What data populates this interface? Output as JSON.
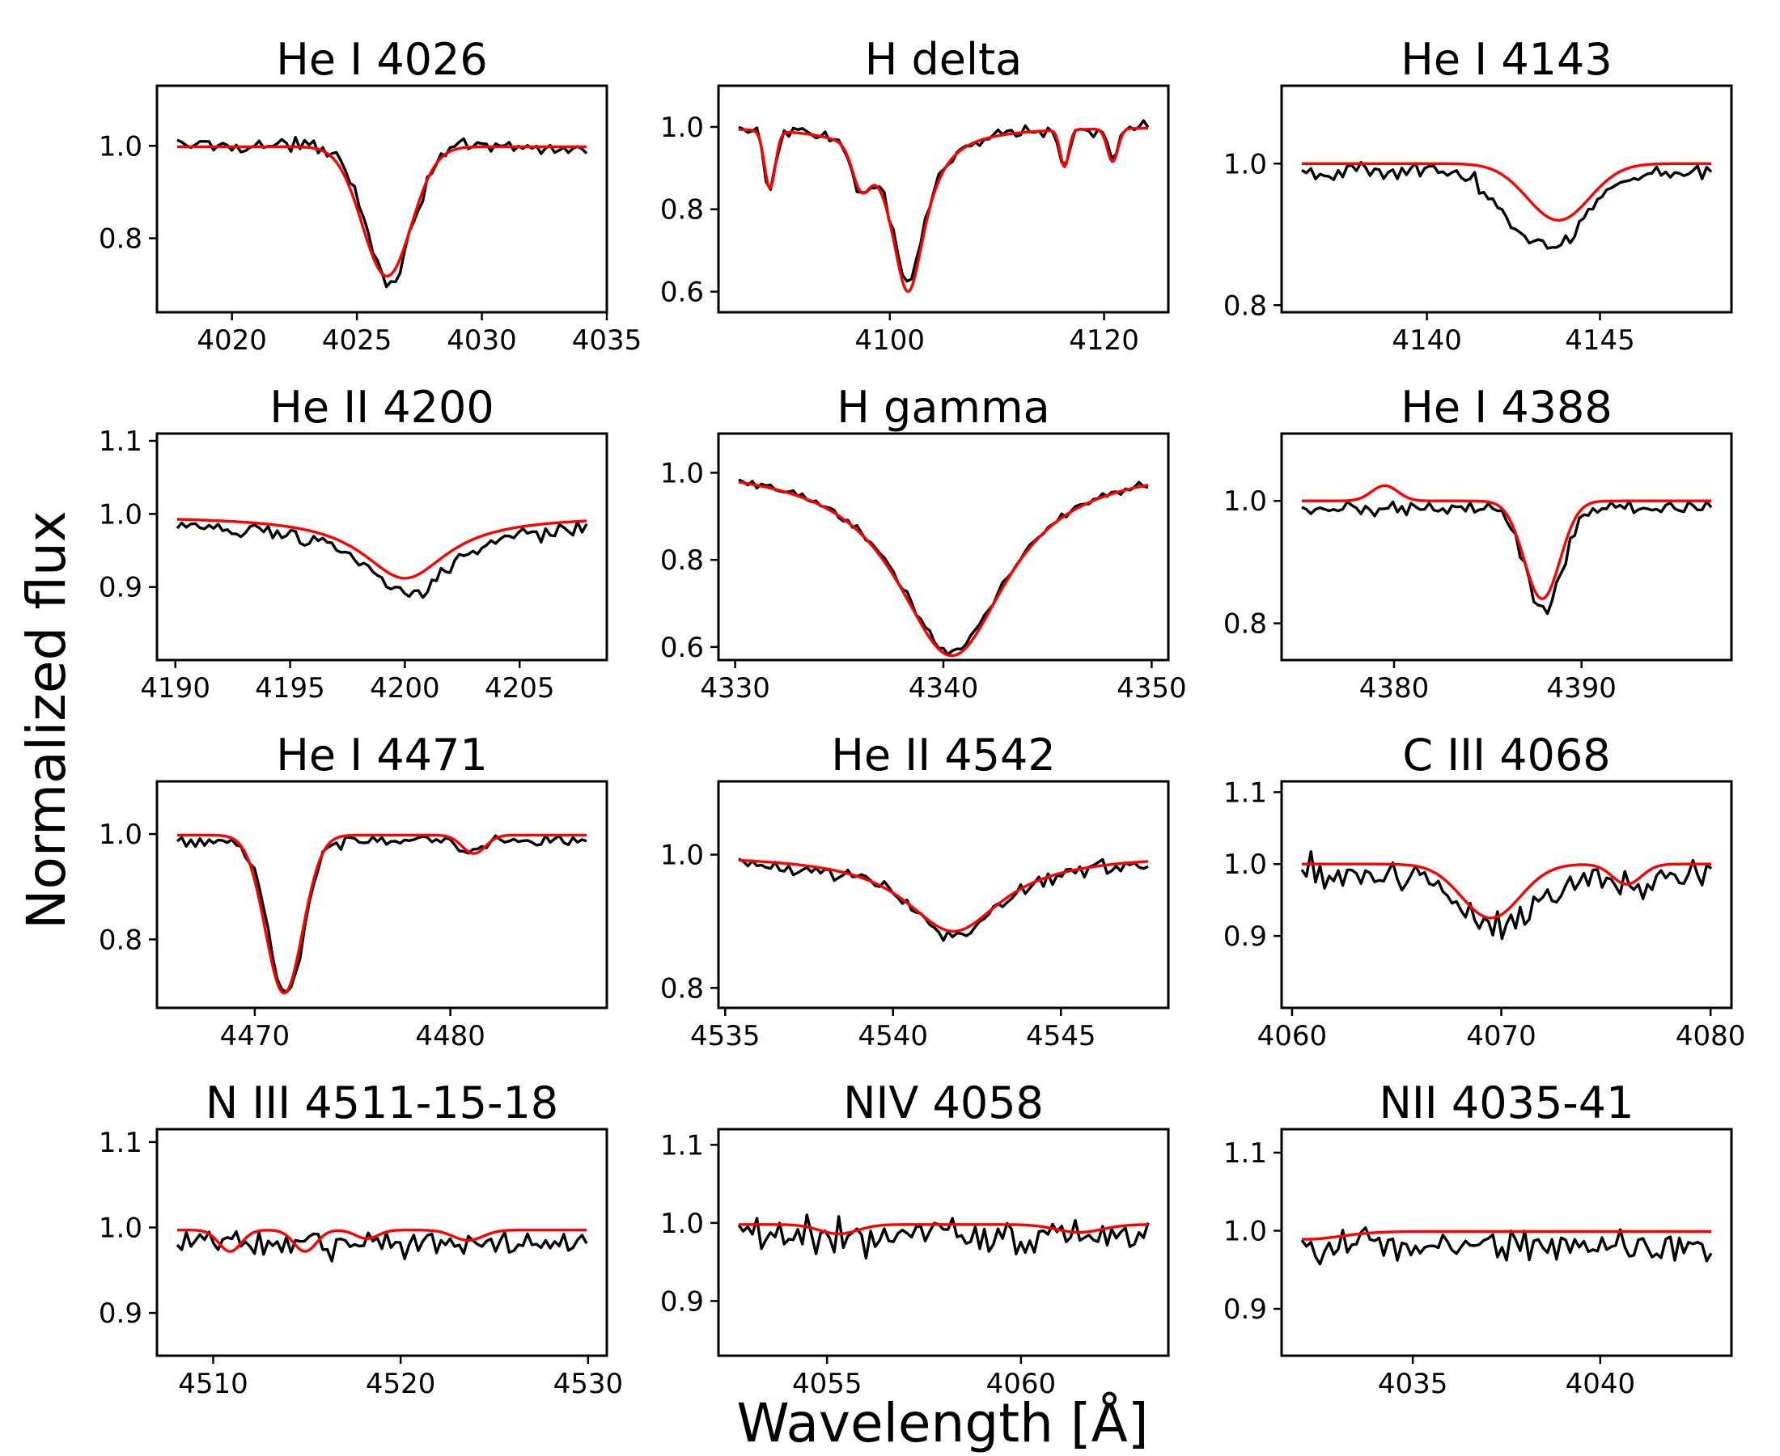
{
  "figure": {
    "ylabel": "Normalized flux",
    "xlabel": "Wavelength [Å]",
    "observed_color": "#000000",
    "model_color": "#ff0000"
  },
  "chart_data": [
    {
      "type": "line",
      "title": "He I 4026",
      "xlim": [
        4017,
        4035
      ],
      "ylim": [
        0.64,
        1.13
      ],
      "xticks": [
        4020,
        4025,
        4030,
        4035
      ],
      "yticks": [
        0.8,
        1.0
      ],
      "ytick_labels": [
        "0.8",
        "1.0"
      ],
      "series": [
        {
          "profile": "gauss",
          "center": 4026.3,
          "depth": 0.29,
          "sigma": 0.9,
          "continuum": 0.998,
          "tilt": -0.01,
          "noise": 0.012
        },
        {
          "profile": "gauss",
          "center": 4026.2,
          "depth": 0.28,
          "sigma": 0.98,
          "continuum": 0.998,
          "tilt": 0.0,
          "noise": 0
        }
      ]
    },
    {
      "type": "line",
      "title": "H delta",
      "xlim": [
        4084,
        4126
      ],
      "ylim": [
        0.55,
        1.1
      ],
      "xticks": [
        4100,
        4120
      ],
      "yticks": [
        0.6,
        0.8,
        1.0
      ],
      "ytick_labels": [
        "0.6",
        "0.8",
        "1.0"
      ],
      "series": [
        {
          "profile": "multi",
          "lines": [
            {
              "c": 4101.7,
              "d": 0.38,
              "s": 2.0,
              "lor": true
            },
            {
              "c": 4088.8,
              "d": 0.14,
              "s": 0.5
            },
            {
              "c": 4097.3,
              "d": 0.1,
              "s": 0.8
            },
            {
              "c": 4116.3,
              "d": 0.09,
              "s": 0.4
            },
            {
              "c": 4120.8,
              "d": 0.06,
              "s": 0.5
            }
          ],
          "continuum": 1.0,
          "noise": 0.012
        },
        {
          "profile": "multi",
          "lines": [
            {
              "c": 4101.7,
              "d": 0.4,
              "s": 2.0,
              "lor": true
            },
            {
              "c": 4088.8,
              "d": 0.14,
              "s": 0.5
            },
            {
              "c": 4097.3,
              "d": 0.09,
              "s": 0.8
            },
            {
              "c": 4116.3,
              "d": 0.09,
              "s": 0.4
            },
            {
              "c": 4120.8,
              "d": 0.08,
              "s": 0.5
            }
          ],
          "continuum": 1.0,
          "noise": 0
        }
      ]
    },
    {
      "type": "line",
      "title": "He I 4143",
      "xlim": [
        4135.8,
        4148.8
      ],
      "ylim": [
        0.79,
        1.11
      ],
      "xticks": [
        4140,
        4145
      ],
      "yticks": [
        0.8,
        1.0
      ],
      "ytick_labels": [
        "0.8",
        "1.0"
      ],
      "series": [
        {
          "profile": "gauss",
          "center": 4143.5,
          "depth": 0.11,
          "sigma": 1.1,
          "continuum": 0.99,
          "tilt": 0.0,
          "noise": 0.01
        },
        {
          "profile": "gauss",
          "center": 4143.8,
          "depth": 0.08,
          "sigma": 0.9,
          "continuum": 1.0,
          "tilt": 0.0,
          "noise": 0
        }
      ]
    },
    {
      "type": "line",
      "title": "He II 4200",
      "xlim": [
        4189.2,
        4208.8
      ],
      "ylim": [
        0.8,
        1.11
      ],
      "xticks": [
        4190,
        4195,
        4200,
        4205
      ],
      "yticks": [
        0.9,
        1.0,
        1.1
      ],
      "ytick_labels": [
        "0.9",
        "1.0",
        "1.1"
      ],
      "series": [
        {
          "profile": "lorentz",
          "center": 4200.2,
          "depth": 0.1,
          "sigma": 2.3,
          "continuum": 0.988,
          "tilt": 0.0,
          "noise": 0.008
        },
        {
          "profile": "lorentz",
          "center": 4200.0,
          "depth": 0.085,
          "sigma": 2.3,
          "continuum": 0.997,
          "tilt": 0.0,
          "noise": 0
        }
      ]
    },
    {
      "type": "line",
      "title": "H gamma",
      "xlim": [
        4329.2,
        4350.8
      ],
      "ylim": [
        0.57,
        1.09
      ],
      "xticks": [
        4330,
        4340,
        4350
      ],
      "yticks": [
        0.6,
        0.8,
        1.0
      ],
      "ytick_labels": [
        "0.6",
        "0.8",
        "1.0"
      ],
      "series": [
        {
          "profile": "lorentz",
          "center": 4340.4,
          "depth": 0.43,
          "sigma": 3.3,
          "continuum": 1.02,
          "tilt": 0.0,
          "noise": 0.008
        },
        {
          "profile": "lorentz",
          "center": 4340.4,
          "depth": 0.44,
          "sigma": 3.3,
          "continuum": 1.02,
          "tilt": 0.0,
          "noise": 0
        }
      ]
    },
    {
      "type": "line",
      "title": "He I 4388",
      "xlim": [
        4374,
        4398
      ],
      "ylim": [
        0.74,
        1.11
      ],
      "xticks": [
        4380,
        4390
      ],
      "yticks": [
        0.8,
        1.0
      ],
      "ytick_labels": [
        "0.8",
        "1.0"
      ],
      "series": [
        {
          "profile": "gauss",
          "center": 4388.0,
          "depth": 0.17,
          "sigma": 0.95,
          "continuum": 0.988,
          "tilt": 0.0,
          "noise": 0.009
        },
        {
          "profile": "multi",
          "lines": [
            {
              "c": 4387.9,
              "d": 0.16,
              "s": 0.95
            },
            {
              "c": 4379.5,
              "d": -0.025,
              "s": 0.7
            }
          ],
          "continuum": 1.0,
          "noise": 0
        }
      ]
    },
    {
      "type": "line",
      "title": "He I 4471",
      "xlim": [
        4465,
        4488
      ],
      "ylim": [
        0.67,
        1.1
      ],
      "xticks": [
        4470,
        4480
      ],
      "yticks": [
        0.8,
        1.0
      ],
      "ytick_labels": [
        "0.8",
        "1.0"
      ],
      "series": [
        {
          "profile": "multi",
          "lines": [
            {
              "c": 4471.6,
              "d": 0.29,
              "s": 0.9
            },
            {
              "c": 4481.2,
              "d": 0.02,
              "s": 0.6
            }
          ],
          "continuum": 0.988,
          "noise": 0.008
        },
        {
          "profile": "multi",
          "lines": [
            {
              "c": 4471.5,
              "d": 0.3,
              "s": 0.95
            },
            {
              "c": 4481.2,
              "d": 0.035,
              "s": 0.6
            }
          ],
          "continuum": 0.998,
          "noise": 0
        }
      ]
    },
    {
      "type": "line",
      "title": "He II 4542",
      "xlim": [
        4534.8,
        4548.2
      ],
      "ylim": [
        0.77,
        1.11
      ],
      "xticks": [
        4535,
        4540,
        4545
      ],
      "yticks": [
        0.8,
        1.0
      ],
      "ytick_labels": [
        "0.8",
        "1.0"
      ],
      "series": [
        {
          "profile": "lorentz",
          "center": 4541.8,
          "depth": 0.12,
          "sigma": 1.6,
          "continuum": 0.995,
          "tilt": 0.0,
          "noise": 0.008
        },
        {
          "profile": "lorentz",
          "center": 4541.8,
          "depth": 0.115,
          "sigma": 1.8,
          "continuum": 1.0,
          "tilt": 0.0,
          "noise": 0
        }
      ]
    },
    {
      "type": "line",
      "title": "C III 4068",
      "xlim": [
        4059.5,
        4081
      ],
      "ylim": [
        0.8,
        1.115
      ],
      "xticks": [
        4060,
        4070,
        4080
      ],
      "yticks": [
        0.9,
        1.0,
        1.1
      ],
      "ytick_labels": [
        "0.9",
        "1.0",
        "1.1"
      ],
      "series": [
        {
          "profile": "multi",
          "lines": [
            {
              "c": 4069.8,
              "d": 0.07,
              "s": 1.6
            },
            {
              "c": 4075.9,
              "d": 0.02,
              "s": 1.0
            }
          ],
          "continuum": 0.985,
          "noise": 0.02
        },
        {
          "profile": "multi",
          "lines": [
            {
              "c": 4069.5,
              "d": 0.075,
              "s": 1.4
            },
            {
              "c": 4076.0,
              "d": 0.028,
              "s": 0.7
            },
            {
              "c": 4072.1,
              "d": 0.0,
              "s": 0.5
            }
          ],
          "continuum": 1.0,
          "noise": 0
        }
      ]
    },
    {
      "type": "line",
      "title": "N III 4511-15-18",
      "xlim": [
        4507,
        4531
      ],
      "ylim": [
        0.85,
        1.115
      ],
      "xticks": [
        4510,
        4520,
        4530
      ],
      "yticks": [
        0.9,
        1.0,
        1.1
      ],
      "ytick_labels": [
        "0.9",
        "1.0",
        "1.1"
      ],
      "series": [
        {
          "profile": "flat",
          "continuum": 0.98,
          "noise": 0.012
        },
        {
          "profile": "multi",
          "lines": [
            {
              "c": 4510.9,
              "d": 0.025,
              "s": 0.6
            },
            {
              "c": 4514.9,
              "d": 0.025,
              "s": 0.6
            },
            {
              "c": 4518.2,
              "d": 0.01,
              "s": 0.6
            },
            {
              "c": 4523.6,
              "d": 0.012,
              "s": 0.8
            }
          ],
          "continuum": 0.997,
          "noise": 0
        }
      ]
    },
    {
      "type": "line",
      "title": "NIV 4058",
      "xlim": [
        4052.2,
        4063.8
      ],
      "ylim": [
        0.83,
        1.12
      ],
      "xticks": [
        4055,
        4060
      ],
      "yticks": [
        0.9,
        1.0,
        1.1
      ],
      "ytick_labels": [
        "0.9",
        "1.0",
        "1.1"
      ],
      "series": [
        {
          "profile": "flat",
          "continuum": 0.983,
          "noise": 0.016
        },
        {
          "profile": "multi",
          "lines": [
            {
              "c": 4055.3,
              "d": 0.012,
              "s": 0.5
            },
            {
              "c": 4061.5,
              "d": 0.01,
              "s": 0.6
            }
          ],
          "continuum": 0.998,
          "noise": 0
        }
      ]
    },
    {
      "type": "line",
      "title": "NII 4035-41",
      "xlim": [
        4031.5,
        4043.5
      ],
      "ylim": [
        0.84,
        1.13
      ],
      "xticks": [
        4035,
        4040
      ],
      "yticks": [
        0.9,
        1.0,
        1.1
      ],
      "ytick_labels": [
        "0.9",
        "1.0",
        "1.1"
      ],
      "series": [
        {
          "profile": "flat",
          "continuum": 0.98,
          "noise": 0.016
        },
        {
          "profile": "flat",
          "continuum": 0.999,
          "dip": 0.01,
          "noise": 0
        }
      ]
    }
  ]
}
